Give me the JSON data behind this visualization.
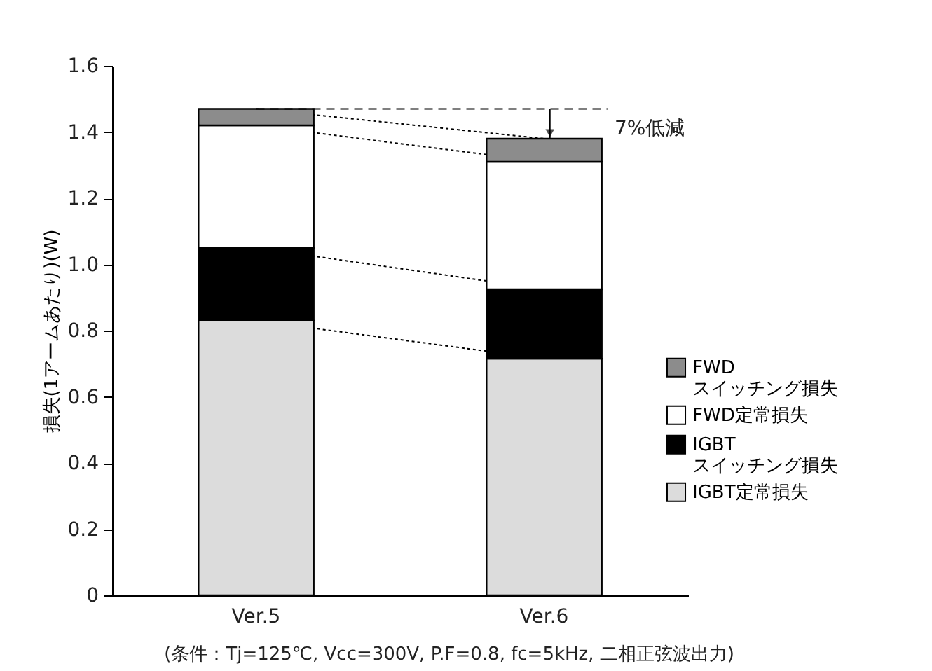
{
  "chart_data": {
    "type": "bar",
    "stacked": true,
    "ylabel": "損失(1アームあたり)(W)",
    "categories": [
      "Ver.5",
      "Ver.6"
    ],
    "series": [
      {
        "name": "IGBT定常損失",
        "color": "#dcdcdc",
        "values": [
          0.83,
          0.715
        ]
      },
      {
        "name": "IGBT\nスイッチング損失",
        "color": "#000000",
        "values": [
          0.22,
          0.21
        ]
      },
      {
        "name": "FWD定常損失",
        "color": "#ffffff",
        "values": [
          0.37,
          0.385
        ]
      },
      {
        "name": "FWD\nスイッチング損失",
        "color": "#8c8c8c",
        "values": [
          0.05,
          0.07
        ]
      }
    ],
    "ylim": [
      0,
      1.6
    ],
    "yticks": [
      0,
      0.2,
      0.4,
      0.6,
      0.8,
      {
        "value": 1,
        "label": "1.0"
      },
      1.2,
      1.4,
      1.6
    ],
    "grid": false,
    "legend": "right",
    "annotations": [
      "7%低減",
      "(条件：Tj=125℃, Vcc=300V, P.F=0.8, fc=5kHz, 二相正弦波出力)"
    ]
  }
}
